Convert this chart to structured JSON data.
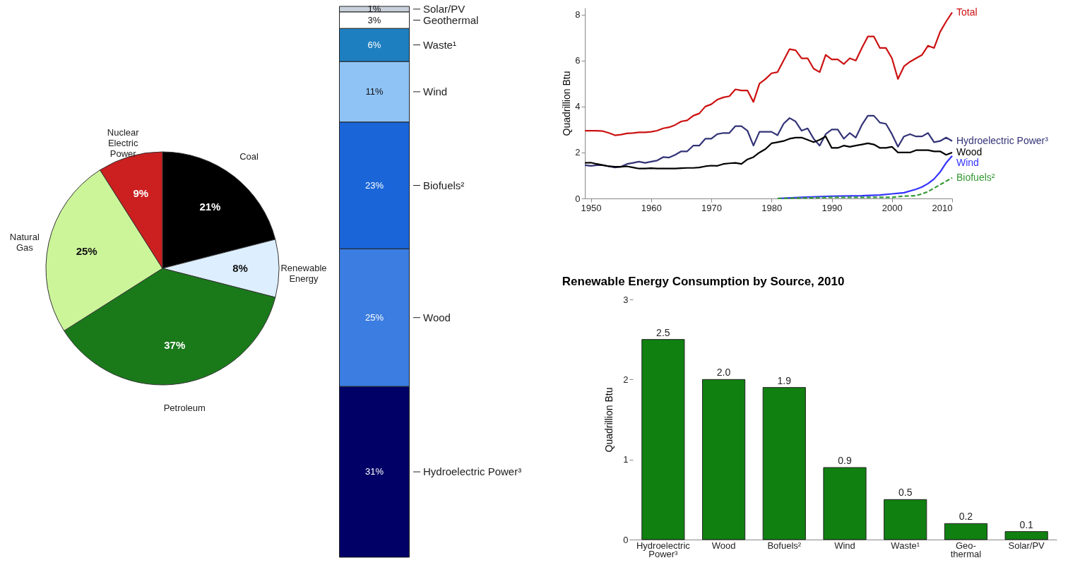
{
  "chart_data": [
    {
      "type": "pie",
      "categories": [
        "Coal",
        "Renewable Energy",
        "Petroleum",
        "Natural Gas",
        "Nuclear Electric Power"
      ],
      "values": [
        21,
        8,
        37,
        25,
        9
      ],
      "value_labels": [
        "21%",
        "8%",
        "37%",
        "25%",
        "9%"
      ],
      "colors": [
        "#000000",
        "#ddeeff",
        "#1a7a1a",
        "#ccf59a",
        "#cc1f1f"
      ]
    },
    {
      "type": "bar",
      "stacked": true,
      "categories": [
        null
      ],
      "tick_labels": false,
      "legend": "right",
      "series": [
        {
          "name": "Hydroelectric Power³",
          "color": "#000066",
          "values": [
            31
          ],
          "value_labels": [
            "31%"
          ]
        },
        {
          "name": "Wood",
          "color": "#3b7de0",
          "values": [
            25
          ],
          "value_labels": [
            "25%"
          ]
        },
        {
          "name": "Biofuels²",
          "color": "#1a66d9",
          "values": [
            23
          ],
          "value_labels": [
            "23%"
          ]
        },
        {
          "name": "Wind",
          "color": "#8fc3f5",
          "values": [
            11
          ],
          "value_labels": [
            "11%"
          ]
        },
        {
          "name": "Waste¹",
          "color": "#1e7fc0",
          "values": [
            6
          ],
          "value_labels": [
            "6%"
          ]
        },
        {
          "name": "Geothermal",
          "color": "#ffffff",
          "values": [
            3
          ],
          "value_labels": [
            "3%"
          ]
        },
        {
          "name": "Solar/PV",
          "color": "#c8d0dc",
          "values": [
            1
          ],
          "value_labels": [
            "1%"
          ]
        }
      ]
    },
    {
      "type": "line",
      "ylabel": "Quadrillion Btu",
      "xlim": [
        1949,
        2010
      ],
      "xticks": [
        1950,
        1960,
        1970,
        1980,
        1990,
        2000,
        2010
      ],
      "ylim": [
        0,
        8.3
      ],
      "yticks": [
        0,
        2,
        4,
        6,
        8
      ],
      "grid": false,
      "series": [
        {
          "name": "Total",
          "color": "#cc1111",
          "x": [
            1949,
            1950,
            1951,
            1952,
            1953,
            1954,
            1955,
            1956,
            1957,
            1958,
            1959,
            1960,
            1961,
            1962,
            1963,
            1964,
            1965,
            1966,
            1967,
            1968,
            1969,
            1970,
            1971,
            1972,
            1973,
            1974,
            1975,
            1976,
            1977,
            1978,
            1979,
            1980,
            1981,
            1982,
            1983,
            1984,
            1985,
            1986,
            1987,
            1988,
            1989,
            1990,
            1991,
            1992,
            1993,
            1994,
            1995,
            1996,
            1997,
            1998,
            1999,
            2000,
            2001,
            2002,
            2003,
            2004,
            2005,
            2006,
            2007,
            2008,
            2009,
            2010
          ],
          "values": [
            2.95,
            2.95,
            2.95,
            2.93,
            2.85,
            2.75,
            2.78,
            2.83,
            2.85,
            2.88,
            2.88,
            2.9,
            2.95,
            3.05,
            3.1,
            3.2,
            3.35,
            3.4,
            3.6,
            3.7,
            4.0,
            4.1,
            4.3,
            4.4,
            4.45,
            4.75,
            4.7,
            4.7,
            4.2,
            5.0,
            5.2,
            5.45,
            5.5,
            6.0,
            6.5,
            6.45,
            6.1,
            6.1,
            5.65,
            5.5,
            6.25,
            6.05,
            6.05,
            5.85,
            6.1,
            6.0,
            6.55,
            7.05,
            7.05,
            6.55,
            6.55,
            6.1,
            5.2,
            5.75,
            5.95,
            6.1,
            6.25,
            6.65,
            6.55,
            7.25,
            7.7,
            8.1
          ]
        },
        {
          "name": "Hydroelectric Power³",
          "color": "#333377",
          "x": [
            1949,
            1950,
            1951,
            1952,
            1953,
            1954,
            1955,
            1956,
            1957,
            1958,
            1959,
            1960,
            1961,
            1962,
            1963,
            1964,
            1965,
            1966,
            1967,
            1968,
            1969,
            1970,
            1971,
            1972,
            1973,
            1974,
            1975,
            1976,
            1977,
            1978,
            1979,
            1980,
            1981,
            1982,
            1983,
            1984,
            1985,
            1986,
            1987,
            1988,
            1989,
            1990,
            1991,
            1992,
            1993,
            1994,
            1995,
            1996,
            1997,
            1998,
            1999,
            2000,
            2001,
            2002,
            2003,
            2004,
            2005,
            2006,
            2007,
            2008,
            2009,
            2010
          ],
          "values": [
            1.45,
            1.42,
            1.45,
            1.45,
            1.4,
            1.35,
            1.38,
            1.5,
            1.55,
            1.6,
            1.55,
            1.6,
            1.65,
            1.8,
            1.78,
            1.9,
            2.05,
            2.05,
            2.3,
            2.3,
            2.6,
            2.6,
            2.8,
            2.85,
            2.85,
            3.15,
            3.15,
            2.95,
            2.3,
            2.9,
            2.9,
            2.9,
            2.75,
            3.25,
            3.5,
            3.35,
            2.95,
            3.05,
            2.6,
            2.3,
            2.8,
            3.0,
            3.0,
            2.6,
            2.85,
            2.65,
            3.2,
            3.6,
            3.6,
            3.3,
            3.25,
            2.8,
            2.25,
            2.7,
            2.8,
            2.7,
            2.7,
            2.85,
            2.45,
            2.5,
            2.65,
            2.5
          ]
        },
        {
          "name": "Wood",
          "color": "#000000",
          "x": [
            1949,
            1950,
            1951,
            1952,
            1953,
            1954,
            1955,
            1956,
            1957,
            1958,
            1959,
            1960,
            1961,
            1962,
            1963,
            1964,
            1965,
            1966,
            1967,
            1968,
            1969,
            1970,
            1971,
            1972,
            1973,
            1974,
            1975,
            1976,
            1977,
            1978,
            1979,
            1980,
            1981,
            1982,
            1983,
            1984,
            1985,
            1986,
            1987,
            1988,
            1989,
            1990,
            1991,
            1992,
            1993,
            1994,
            1995,
            1996,
            1997,
            1998,
            1999,
            2000,
            2001,
            2002,
            2003,
            2004,
            2005,
            2006,
            2007,
            2008,
            2009,
            2010
          ],
          "values": [
            1.55,
            1.56,
            1.5,
            1.45,
            1.4,
            1.38,
            1.38,
            1.4,
            1.35,
            1.3,
            1.3,
            1.32,
            1.3,
            1.3,
            1.3,
            1.3,
            1.32,
            1.33,
            1.33,
            1.35,
            1.4,
            1.43,
            1.42,
            1.5,
            1.53,
            1.55,
            1.5,
            1.7,
            1.8,
            2.0,
            2.15,
            2.4,
            2.45,
            2.5,
            2.6,
            2.65,
            2.65,
            2.55,
            2.45,
            2.55,
            2.7,
            2.2,
            2.2,
            2.3,
            2.25,
            2.3,
            2.35,
            2.4,
            2.35,
            2.2,
            2.2,
            2.25,
            2.0,
            2.0,
            2.0,
            2.1,
            2.1,
            2.1,
            2.05,
            2.05,
            1.9,
            2.0
          ]
        },
        {
          "name": "Wind",
          "color": "#3333ff",
          "x": [
            1981,
            1985,
            1990,
            1995,
            1998,
            2000,
            2002,
            2004,
            2005,
            2006,
            2007,
            2008,
            2009,
            2010
          ],
          "values": [
            0.0,
            0.05,
            0.1,
            0.12,
            0.15,
            0.2,
            0.25,
            0.4,
            0.5,
            0.65,
            0.85,
            1.15,
            1.55,
            1.85
          ]
        },
        {
          "name": "Biofuels²",
          "color": "#339933",
          "line_style": "dashed",
          "x": [
            1981,
            1990,
            2000,
            2002,
            2004,
            2005,
            2006,
            2007,
            2008,
            2009,
            2010
          ],
          "values": [
            0.0,
            0.05,
            0.05,
            0.1,
            0.12,
            0.2,
            0.3,
            0.45,
            0.6,
            0.75,
            0.9
          ]
        }
      ]
    },
    {
      "type": "bar",
      "title": "Renewable Energy Consumption by Source, 2010",
      "ylabel": "Quadrillion Btu",
      "categories": [
        "Hydroelectric Power³",
        "Wood",
        "Bofuels²",
        "Wind",
        "Waste¹",
        "Geo-thermal",
        "Solar/PV"
      ],
      "values": [
        2.5,
        2.0,
        1.9,
        0.9,
        0.5,
        0.2,
        0.1
      ],
      "value_labels": [
        "2.5",
        "2.0",
        "1.9",
        "0.9",
        "0.5",
        "0.2",
        "0.1"
      ],
      "color": "#108010",
      "ylim": [
        0,
        3
      ],
      "yticks": [
        0,
        1,
        2,
        3
      ],
      "grid": false
    }
  ]
}
